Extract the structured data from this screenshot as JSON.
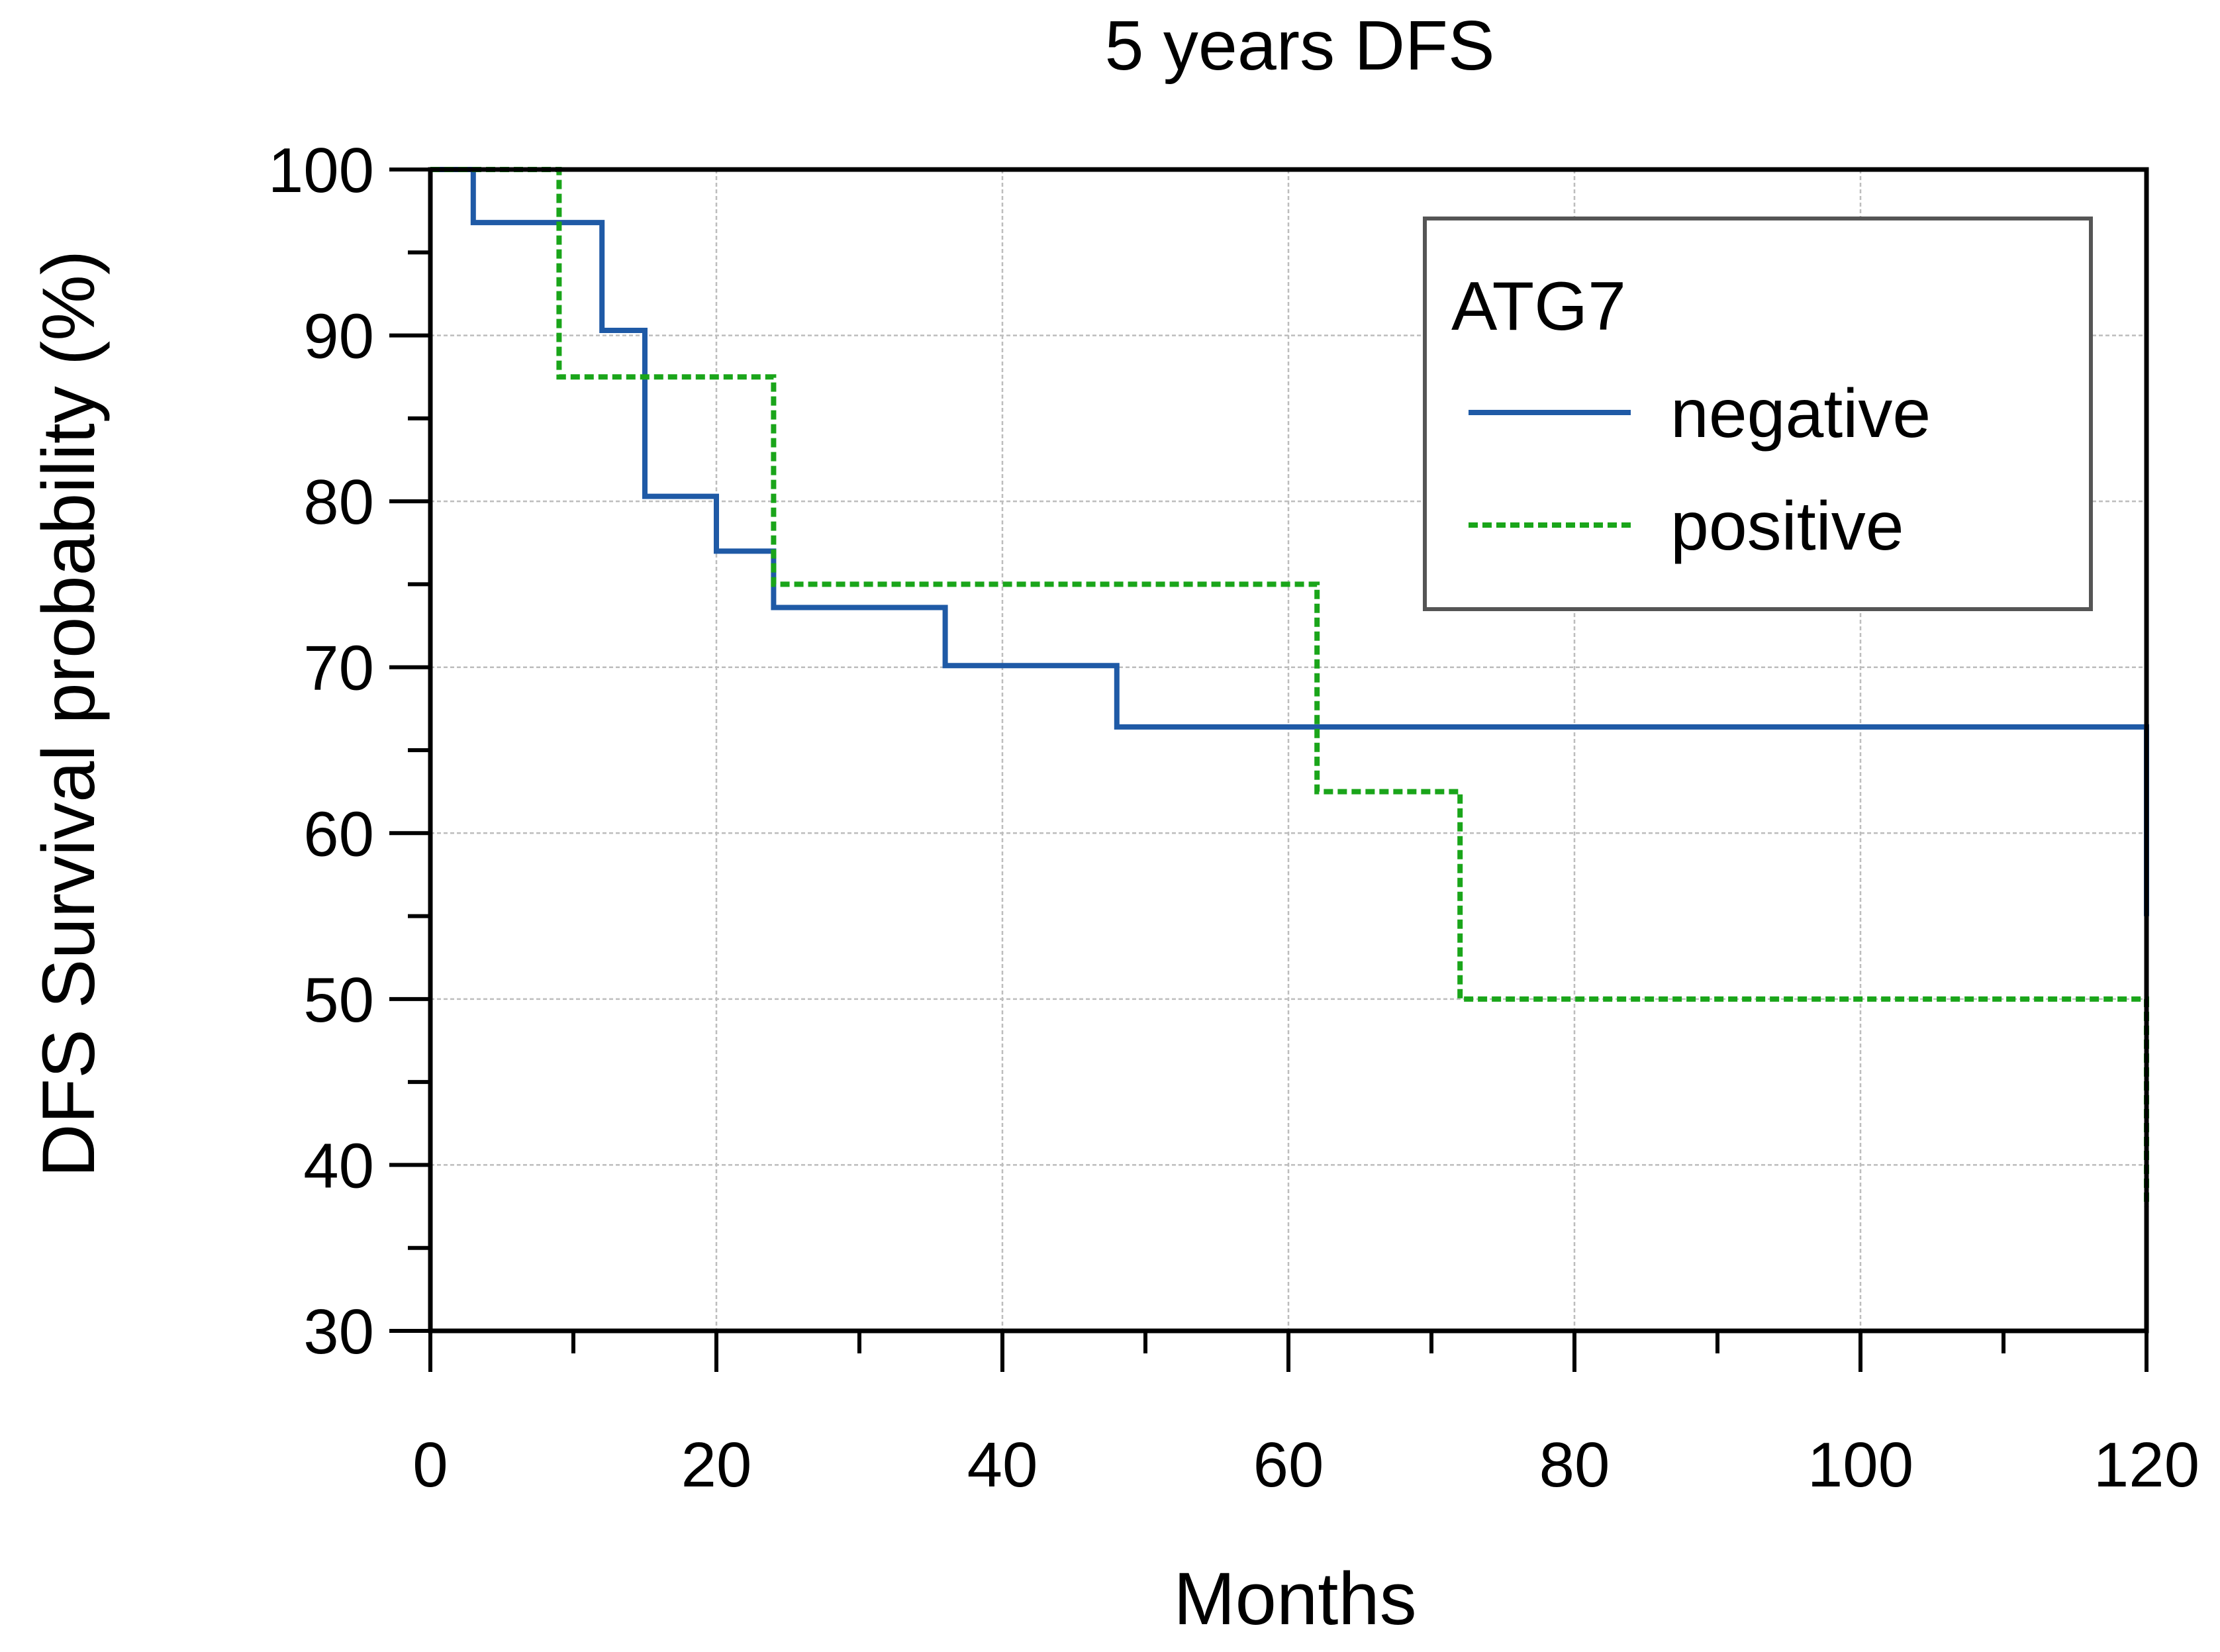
{
  "chart_data": {
    "type": "line",
    "subtype": "kaplan-meier step",
    "title": "5 years DFS",
    "xlabel": "Months",
    "ylabel": "DFS Survival probability (%)",
    "xlim": [
      0,
      120
    ],
    "ylim": [
      30,
      100
    ],
    "x_ticks": [
      0,
      20,
      40,
      60,
      80,
      100,
      120
    ],
    "y_ticks": [
      30,
      40,
      50,
      60,
      70,
      80,
      90,
      100
    ],
    "x_minor_step": 10,
    "y_minor_step": 5,
    "grid": true,
    "legend": {
      "title": "ATG7",
      "placement": "top-right"
    },
    "series": [
      {
        "name": "negative",
        "color": "#1f5aa6",
        "style": "solid",
        "x": [
          0,
          3,
          12,
          15,
          20,
          24,
          36,
          48,
          120,
          120
        ],
        "y": [
          100,
          96.8,
          90.3,
          80.3,
          77.0,
          73.6,
          70.1,
          66.4,
          66.4,
          55.0
        ]
      },
      {
        "name": "positive",
        "color": "#1aa51a",
        "style": "dashed",
        "x": [
          0,
          9,
          24,
          62,
          72,
          120,
          120
        ],
        "y": [
          100,
          87.5,
          75.0,
          62.5,
          50.0,
          50.0,
          37.5
        ]
      }
    ]
  }
}
